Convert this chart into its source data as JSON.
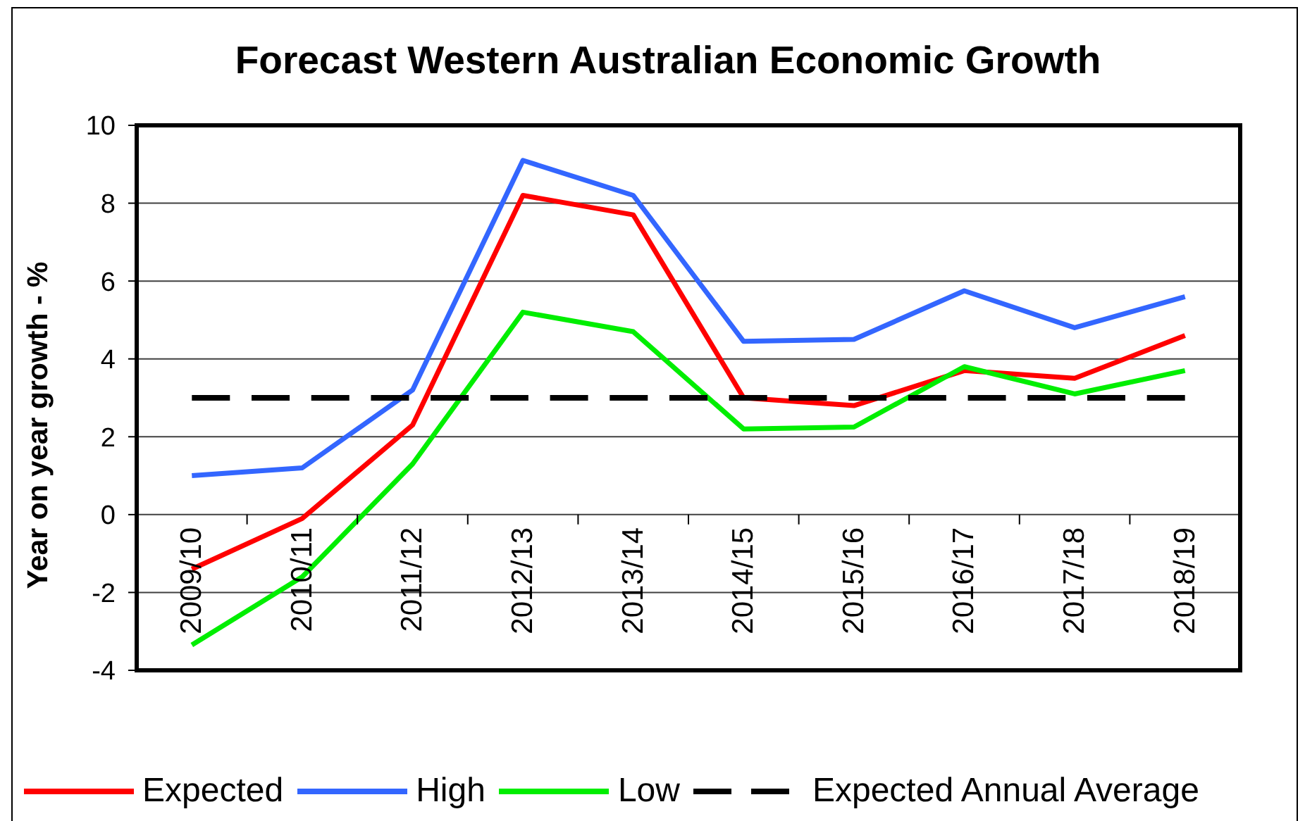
{
  "chart_data": {
    "type": "line",
    "title": "Forecast Western Australian Economic Growth",
    "ylabel": "Year on year growth - %",
    "categories": [
      "2009/10",
      "2010/11",
      "2011/12",
      "2012/13",
      "2013/14",
      "2014/15",
      "2015/16",
      "2016/17",
      "2017/18",
      "2018/19"
    ],
    "series": [
      {
        "name": "Expected",
        "color": "#ff0000",
        "values": [
          -1.4,
          -0.1,
          2.3,
          8.2,
          7.7,
          3.0,
          2.8,
          3.7,
          3.5,
          4.6
        ]
      },
      {
        "name": "High",
        "color": "#3366ff",
        "values": [
          1.0,
          1.2,
          3.2,
          9.1,
          8.2,
          4.45,
          4.5,
          5.75,
          4.8,
          5.6
        ]
      },
      {
        "name": "Low",
        "color": "#00ee00",
        "values": [
          -3.35,
          -1.6,
          1.3,
          5.2,
          4.7,
          2.2,
          2.25,
          3.8,
          3.1,
          3.7
        ]
      },
      {
        "name": "Expected Annual Average",
        "color": "#000000",
        "line_style": "dashed",
        "values": [
          3,
          3,
          3,
          3,
          3,
          3,
          3,
          3,
          3,
          3
        ]
      }
    ],
    "ylim": [
      -4,
      10
    ],
    "yticks": [
      -4,
      -2,
      0,
      2,
      4,
      6,
      8,
      10
    ],
    "grid": "y",
    "legend": "bottom"
  }
}
